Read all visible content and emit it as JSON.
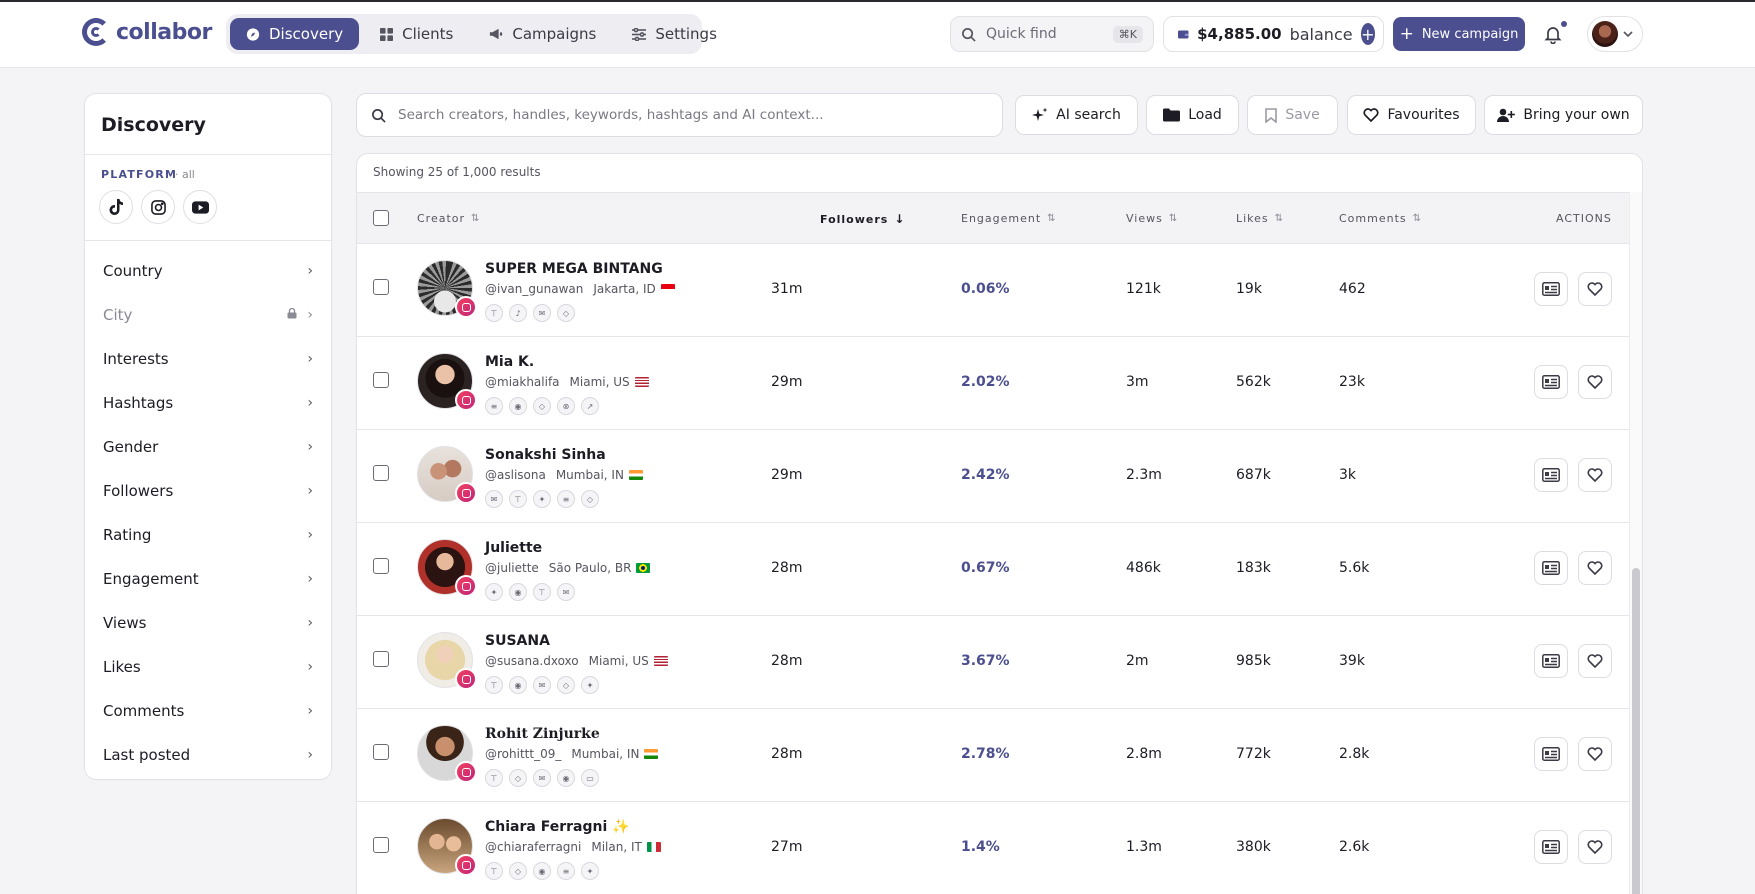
{
  "app": {
    "logo": "collabor"
  },
  "nav": [
    {
      "label": "Discovery",
      "active": true,
      "icon": "compass-icon"
    },
    {
      "label": "Clients",
      "active": false,
      "icon": "grid-icon"
    },
    {
      "label": "Campaigns",
      "active": false,
      "icon": "megaphone-icon"
    },
    {
      "label": "Settings",
      "active": false,
      "icon": "sliders-icon"
    }
  ],
  "header": {
    "quickfind_label": "Quick find",
    "quickfind_shortcut": "⌘K",
    "balance_amount": "$4,885.00",
    "balance_label": "balance",
    "new_campaign_label": "New campaign"
  },
  "sidebar": {
    "title": "Discovery",
    "platform_label": "PLATFORM",
    "platform_scope": "· all",
    "filters": [
      {
        "label": "Country",
        "locked": false
      },
      {
        "label": "City",
        "locked": true
      },
      {
        "label": "Interests",
        "locked": false
      },
      {
        "label": "Hashtags",
        "locked": false
      },
      {
        "label": "Gender",
        "locked": false
      },
      {
        "label": "Followers",
        "locked": false
      },
      {
        "label": "Rating",
        "locked": false
      },
      {
        "label": "Engagement",
        "locked": false
      },
      {
        "label": "Views",
        "locked": false
      },
      {
        "label": "Likes",
        "locked": false
      },
      {
        "label": "Comments",
        "locked": false
      },
      {
        "label": "Last posted",
        "locked": false
      }
    ]
  },
  "search": {
    "placeholder": "Search creators, handles, keywords, hashtags and AI context...",
    "ai_search_label": "AI search",
    "load_label": "Load",
    "save_label": "Save",
    "favourites_label": "Favourites",
    "bring_label": "Bring your own"
  },
  "results": {
    "count_text": "Showing 25 of 1,000 results",
    "columns": {
      "creator": "Creator",
      "followers": "Followers",
      "engagement": "Engagement",
      "views": "Views",
      "likes": "Likes",
      "comments": "Comments",
      "actions": "ACTIONS"
    },
    "rows": [
      {
        "name": "SUPER MEGA BINTANG",
        "handle": "@ivan_gunawan",
        "location": "Jakarta, ID",
        "flag": "ID",
        "followers": "31m",
        "engagement": "0.06%",
        "views": "121k",
        "likes": "19k",
        "comments": "462"
      },
      {
        "name": "Mia K.",
        "handle": "@miakhalifa",
        "location": "Miami, US",
        "flag": "US",
        "followers": "29m",
        "engagement": "2.02%",
        "views": "3m",
        "likes": "562k",
        "comments": "23k"
      },
      {
        "name": "Sonakshi Sinha",
        "handle": "@aslisona",
        "location": "Mumbai, IN",
        "flag": "IN",
        "followers": "29m",
        "engagement": "2.42%",
        "views": "2.3m",
        "likes": "687k",
        "comments": "3k"
      },
      {
        "name": "Juliette",
        "handle": "@juliette",
        "location": "São Paulo, BR",
        "flag": "BR",
        "followers": "28m",
        "engagement": "0.67%",
        "views": "486k",
        "likes": "183k",
        "comments": "5.6k"
      },
      {
        "name": "SUSANA",
        "handle": "@susana.dxoxo",
        "location": "Miami, US",
        "flag": "US",
        "followers": "28m",
        "engagement": "3.67%",
        "views": "2m",
        "likes": "985k",
        "comments": "39k"
      },
      {
        "name": "Rohit Zinjurke",
        "handle": "@rohittt_09_",
        "location": "Mumbai, IN",
        "flag": "IN",
        "followers": "28m",
        "engagement": "2.78%",
        "views": "2.8m",
        "likes": "772k",
        "comments": "2.8k"
      },
      {
        "name": "Chiara Ferragni ✨",
        "handle": "@chiaraferragni",
        "location": "Milan, IT",
        "flag": "IT",
        "followers": "27m",
        "engagement": "1.4%",
        "views": "1.3m",
        "likes": "380k",
        "comments": "2.6k"
      }
    ]
  },
  "colors": {
    "accent": "#4b4f8f",
    "instagram": "#e1306c"
  }
}
